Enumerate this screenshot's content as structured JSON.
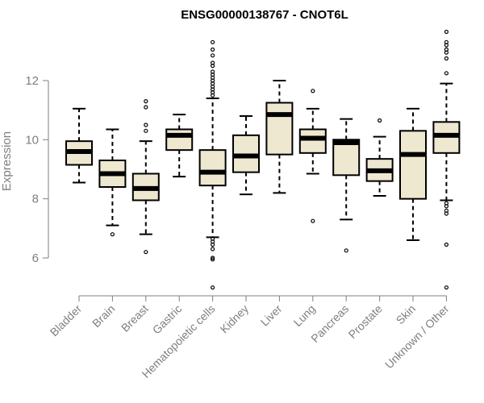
{
  "chart_data": {
    "type": "boxplot",
    "title": "ENSG00000138767 - CNOT6L",
    "xlabel": "",
    "ylabel": "Expression",
    "ylim": [
      4.6,
      13.8
    ],
    "yticks": [
      6,
      8,
      10,
      12
    ],
    "box_fill": "#efe8d0",
    "categories": [
      "Bladder",
      "Brain",
      "Breast",
      "Gastric",
      "Hematopoietic cells",
      "Kidney",
      "Liver",
      "Lung",
      "Pancreas",
      "Prostate",
      "Skin",
      "Unknown / Other"
    ],
    "boxes": [
      {
        "min": 8.55,
        "q1": 9.15,
        "median": 9.6,
        "q3": 9.95,
        "max": 11.05,
        "outliers": []
      },
      {
        "min": 7.1,
        "q1": 8.4,
        "median": 8.85,
        "q3": 9.3,
        "max": 10.35,
        "outliers": [
          6.8
        ]
      },
      {
        "min": 6.8,
        "q1": 7.95,
        "median": 8.35,
        "q3": 8.85,
        "max": 9.95,
        "outliers": [
          6.2,
          10.3,
          10.5,
          11.1,
          11.3
        ]
      },
      {
        "min": 8.75,
        "q1": 9.65,
        "median": 10.15,
        "q3": 10.35,
        "max": 10.85,
        "outliers": []
      },
      {
        "min": 6.7,
        "q1": 8.45,
        "median": 8.9,
        "q3": 9.65,
        "max": 11.4,
        "outliers": [
          5.0,
          5.95,
          6.0,
          6.3,
          6.45,
          6.55,
          6.65,
          11.5,
          11.6,
          11.7,
          11.8,
          11.9,
          12.0,
          12.1,
          12.2,
          12.3,
          12.5,
          12.6,
          12.85,
          13.05,
          13.3
        ]
      },
      {
        "min": 8.15,
        "q1": 8.9,
        "median": 9.45,
        "q3": 10.15,
        "max": 10.8,
        "outliers": []
      },
      {
        "min": 8.2,
        "q1": 9.5,
        "median": 10.85,
        "q3": 11.25,
        "max": 12.0,
        "outliers": []
      },
      {
        "min": 8.85,
        "q1": 9.55,
        "median": 10.05,
        "q3": 10.35,
        "max": 11.05,
        "outliers": [
          7.25,
          11.65
        ]
      },
      {
        "min": 7.3,
        "q1": 8.8,
        "median": 9.9,
        "q3": 10.0,
        "max": 10.7,
        "outliers": [
          6.25
        ]
      },
      {
        "min": 8.1,
        "q1": 8.6,
        "median": 8.95,
        "q3": 9.35,
        "max": 10.1,
        "outliers": [
          10.65
        ]
      },
      {
        "min": 6.6,
        "q1": 8.0,
        "median": 9.5,
        "q3": 10.3,
        "max": 11.05,
        "outliers": []
      },
      {
        "min": 7.95,
        "q1": 9.55,
        "median": 10.15,
        "q3": 10.6,
        "max": 11.9,
        "outliers": [
          5.0,
          6.45,
          7.5,
          7.6,
          7.75,
          7.85,
          12.25,
          12.75,
          12.95,
          13.05,
          13.2,
          13.3,
          13.65
        ]
      }
    ]
  }
}
